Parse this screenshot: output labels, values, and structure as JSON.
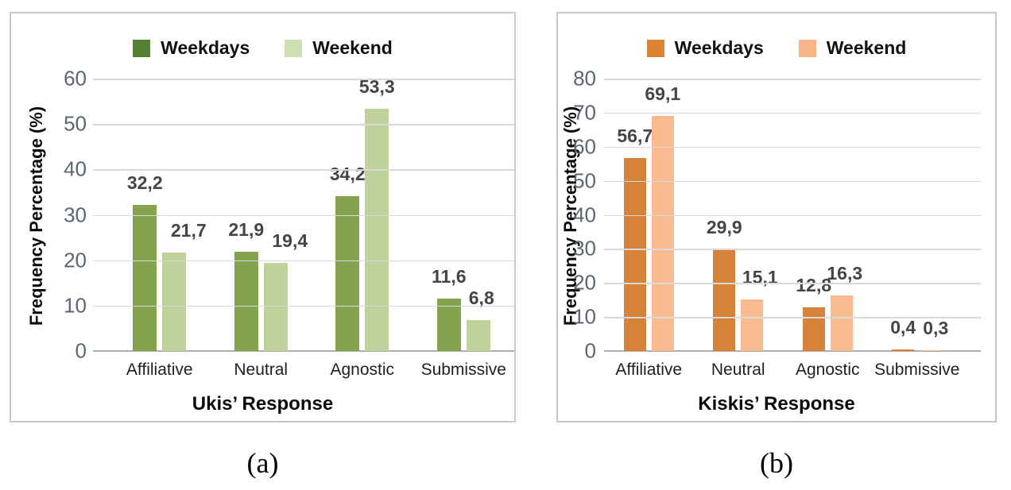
{
  "figure": {
    "sublabels": [
      "(a)",
      "(b)"
    ]
  },
  "chart_data": [
    {
      "type": "bar",
      "title": "",
      "ylabel": "Frequency Percentage (%)",
      "xlabel": "Ukis’ Response",
      "categories": [
        "Affiliative",
        "Neutral",
        "Agnostic",
        "Submissive"
      ],
      "series": [
        {
          "name": "Weekdays",
          "bar_color": "#85A24F",
          "legend_color": "#538033",
          "values": [
            32.2,
            21.9,
            34.2,
            11.6
          ],
          "value_labels": [
            "32,2",
            "21,9",
            "34,2",
            "11,6"
          ]
        },
        {
          "name": "Weekend",
          "bar_color": "#BFD29C",
          "legend_color": "#CDE0B3",
          "values": [
            21.7,
            19.4,
            53.3,
            6.8
          ],
          "value_labels": [
            "21,7",
            "19,4",
            "53,3",
            "6,8"
          ]
        }
      ],
      "ylim": [
        0,
        60
      ],
      "ytick_step": 10,
      "grid": true,
      "legend_position": "top",
      "decimal_separator": ",",
      "label_dx": [
        [
          0,
          0,
          0,
          0
        ],
        [
          18,
          18,
          0,
          4
        ]
      ],
      "sublabel": "(a)"
    },
    {
      "type": "bar",
      "title": "",
      "ylabel": "Frequency Percentage (%)",
      "xlabel": "Kiskis’ Response",
      "categories": [
        "Affiliative",
        "Neutral",
        "Agnostic",
        "Submissive"
      ],
      "series": [
        {
          "name": "Weekdays",
          "bar_color": "#D5823B",
          "legend_color": "#DC8334",
          "values": [
            56.7,
            29.9,
            12.8,
            0.4
          ],
          "value_labels": [
            "56,7",
            "29,9",
            "12,8",
            "0,4"
          ]
        },
        {
          "name": "Weekend",
          "bar_color": "#F9BA8F",
          "legend_color": "#F7B489",
          "values": [
            69.1,
            15.1,
            16.3,
            0.3
          ],
          "value_labels": [
            "69,1",
            "15,1",
            "16,3",
            "0,3"
          ]
        }
      ],
      "ylim": [
        0,
        80
      ],
      "ytick_step": 10,
      "grid": true,
      "legend_position": "top",
      "decimal_separator": ",",
      "label_dx": [
        [
          0,
          0,
          0,
          0
        ],
        [
          0,
          10,
          4,
          6
        ]
      ],
      "sublabel": "(b)"
    }
  ]
}
